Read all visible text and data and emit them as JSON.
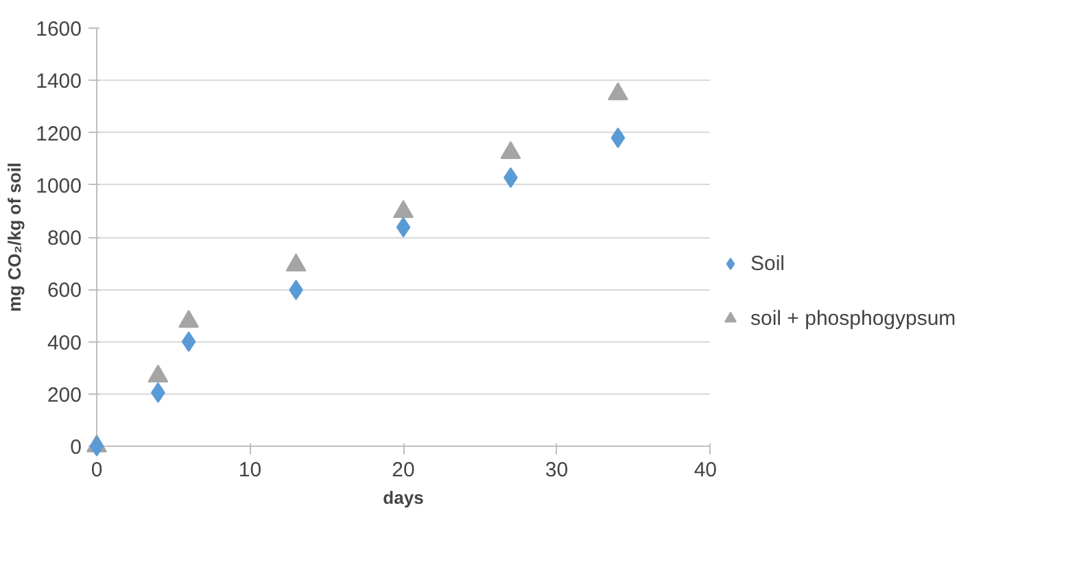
{
  "chart_data": {
    "type": "scatter",
    "xlabel": "days",
    "ylabel": "mg CO₂/kg of soil",
    "x": [
      0,
      4,
      6,
      13,
      20,
      27,
      34
    ],
    "series": [
      {
        "name": "Soil",
        "color": "#5b9bd5",
        "marker": "diamond",
        "values": [
          0,
          205,
          400,
          598,
          838,
          1028,
          1180
        ]
      },
      {
        "name": "soil + phosphogypsum",
        "color": "#a5a5a5",
        "marker": "triangle",
        "values": [
          0,
          268,
          477,
          693,
          897,
          1123,
          1348
        ]
      }
    ],
    "xlim": [
      0,
      40
    ],
    "xticks": [
      0,
      10,
      20,
      30,
      40
    ],
    "ylim": [
      0,
      1600
    ],
    "yticks": [
      0,
      200,
      400,
      600,
      800,
      1000,
      1200,
      1400,
      1600
    ],
    "grid": "y",
    "legend": "right"
  }
}
